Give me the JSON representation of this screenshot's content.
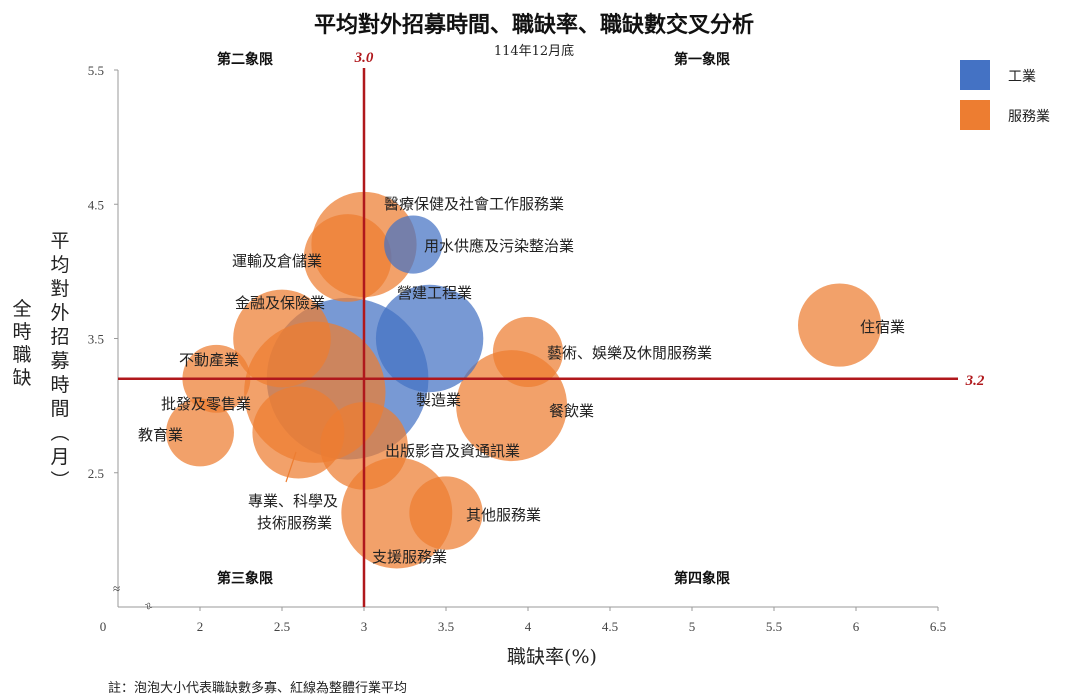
{
  "chart_data": {
    "type": "bubble",
    "title": "平均對外招募時間、職缺率、職缺數交叉分析",
    "subtitle": "114年12月底",
    "xlabel": "職缺率(%)",
    "ylabel_left": "全時職缺",
    "ylabel_right": "平均對外招募時間(月)",
    "xlim": [
      1.5,
      6.5
    ],
    "ylim": [
      1.5,
      5.5
    ],
    "x_origin_label": "0",
    "x_ticks": [
      "2",
      "2.5",
      "3",
      "3.5",
      "4",
      "4.5",
      "5",
      "5.5",
      "6",
      "6.5"
    ],
    "y_ticks": [
      "2.5",
      "3.5",
      "4.5",
      "5.5"
    ],
    "axis_break_symbols": [
      "≈",
      "≈"
    ],
    "average_x": {
      "value": 3.0,
      "label": "3.0",
      "color": "#b0181c"
    },
    "average_y": {
      "value": 3.2,
      "label": "3.2",
      "color": "#b0181c"
    },
    "quadrants": [
      "第一象限",
      "第二象限",
      "第三象限",
      "第四象限"
    ],
    "legend": [
      {
        "name": "工業",
        "color": "#4472c4"
      },
      {
        "name": "服務業",
        "color": "#ed7d31"
      }
    ],
    "series": [
      {
        "name": "醫療保健及社會工作服務業",
        "group": "服務業",
        "x": 3.0,
        "y": 4.2,
        "size": 0.72
      },
      {
        "name": "用水供應及污染整治業",
        "group": "工業",
        "x": 3.3,
        "y": 4.2,
        "size": 0.22
      },
      {
        "name": "運輸及倉儲業",
        "group": "服務業",
        "x": 2.9,
        "y": 4.1,
        "size": 0.5
      },
      {
        "name": "金融及保險業",
        "group": "服務業",
        "x": 2.5,
        "y": 3.5,
        "size": 0.62
      },
      {
        "name": "營建工程業",
        "group": "工業",
        "x": 3.4,
        "y": 3.5,
        "size": 0.75
      },
      {
        "name": "住宿業",
        "group": "服務業",
        "x": 5.9,
        "y": 3.6,
        "size": 0.45
      },
      {
        "name": "藝術、娛樂及休閒服務業",
        "group": "服務業",
        "x": 4.0,
        "y": 3.4,
        "size": 0.32
      },
      {
        "name": "不動產業",
        "group": "服務業",
        "x": 2.1,
        "y": 3.2,
        "size": 0.3
      },
      {
        "name": "製造業",
        "group": "工業",
        "x": 2.9,
        "y": 3.2,
        "size": 1.7
      },
      {
        "name": "批發及零售業",
        "group": "服務業",
        "x": 2.7,
        "y": 3.1,
        "size": 1.3
      },
      {
        "name": "餐飲業",
        "group": "服務業",
        "x": 3.9,
        "y": 3.0,
        "size": 0.8
      },
      {
        "name": "教育業",
        "group": "服務業",
        "x": 2.0,
        "y": 2.8,
        "size": 0.3
      },
      {
        "name": "專業、科學及技術服務業",
        "group": "服務業",
        "x": 2.6,
        "y": 2.8,
        "size": 0.55
      },
      {
        "name": "出版影音及資通訊業",
        "group": "服務業",
        "x": 3.0,
        "y": 2.7,
        "size": 0.5
      },
      {
        "name": "支援服務業",
        "group": "服務業",
        "x": 3.2,
        "y": 2.2,
        "size": 0.8
      },
      {
        "name": "其他服務業",
        "group": "服務業",
        "x": 3.5,
        "y": 2.2,
        "size": 0.35
      }
    ],
    "note": "註：泡泡大小代表職缺數多寡、紅線為整體行業平均"
  }
}
